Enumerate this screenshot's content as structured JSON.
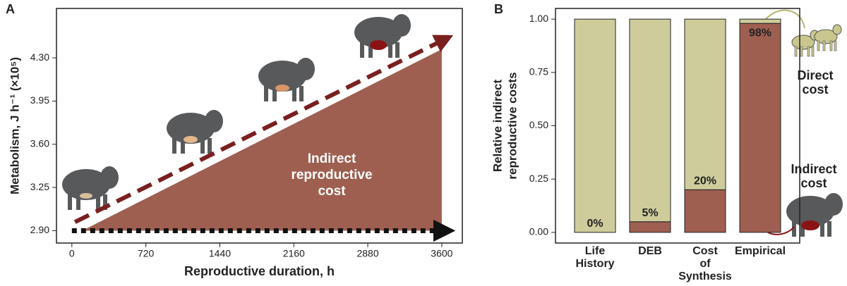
{
  "chart_data": [
    {
      "type": "line",
      "panel_label": "A",
      "xlabel": "Reproductive duration, h",
      "ylabel": "Metabolism, J h⁻¹ (×10⁵)",
      "annotation": [
        "Indirect",
        "reproductive",
        "cost"
      ],
      "xlim": [
        -150,
        3800
      ],
      "xticks": [
        0,
        720,
        1440,
        2160,
        2880,
        3600
      ],
      "ylim": [
        2.8,
        4.7
      ],
      "yticks": [
        {
          "value": 2.9,
          "label": "2.90"
        },
        3.25,
        {
          "value": 3.6,
          "label": "3.60"
        },
        3.95,
        {
          "value": 4.3,
          "label": "4.30"
        }
      ],
      "series": [
        {
          "color": "#9e5f51",
          "shape": "polygon",
          "x": [
            100,
            3600,
            3600
          ],
          "values": [
            2.9,
            4.37,
            2.9
          ]
        },
        {
          "color": "#7a1f1f",
          "dash": "dashed",
          "arrow": true,
          "x": [
            30,
            3580
          ],
          "values": [
            2.97,
            4.43
          ]
        },
        {
          "color": "#111111",
          "dash": "dotted",
          "arrow": true,
          "x": [
            0,
            3560
          ],
          "values": [
            2.9,
            2.9
          ]
        }
      ]
    },
    {
      "type": "bar",
      "panel_label": "B",
      "ylabel": [
        "Relative indirect",
        "reproductive costs"
      ],
      "annotations": [
        [
          "Direct",
          "cost"
        ],
        [
          "Indirect",
          "cost"
        ]
      ],
      "categories": [
        "Life History",
        "DEB",
        "Cost of Synthesis",
        "Empirical"
      ],
      "ylim": [
        -0.05,
        1.05
      ],
      "yticks": [
        {
          "value": 0,
          "label": "0.00"
        },
        0.25,
        {
          "value": 0.5,
          "label": "0.50"
        },
        0.75,
        {
          "value": 1,
          "label": "1.00"
        }
      ],
      "stacked": true,
      "series": [
        {
          "color": "#9e5f51",
          "values": [
            0,
            0.05,
            0.2,
            0.98
          ],
          "value_labels": [
            "0%",
            "5%",
            "20%",
            "98%"
          ]
        },
        {
          "color": "#cfcc9c",
          "values": [
            1,
            0.95,
            0.8,
            0.02
          ]
        }
      ]
    }
  ]
}
